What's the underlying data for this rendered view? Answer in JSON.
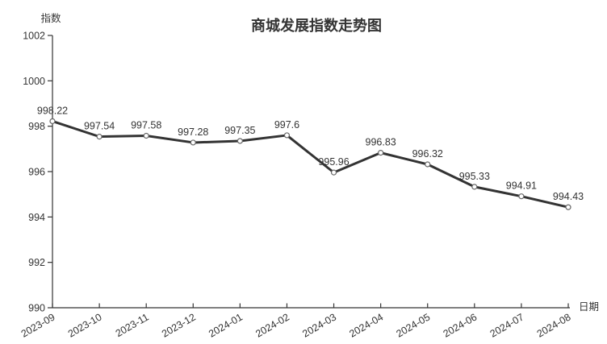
{
  "chart": {
    "title": "商城发展指数走势图",
    "y_axis_name": "指数",
    "x_axis_name": "日期"
  },
  "chart_data": {
    "type": "line",
    "title": "商城发展指数走势图",
    "xlabel": "日期",
    "ylabel": "指数",
    "categories": [
      "2023-09",
      "2023-10",
      "2023-11",
      "2023-12",
      "2024-01",
      "2024-02",
      "2024-03",
      "2024-04",
      "2024-05",
      "2024-06",
      "2024-07",
      "2024-08"
    ],
    "values": [
      998.22,
      997.54,
      997.58,
      997.28,
      997.35,
      997.6,
      995.96,
      996.83,
      996.32,
      995.33,
      994.91,
      994.43
    ],
    "ylim": [
      990,
      1002
    ],
    "y_ticks": [
      990,
      992,
      994,
      996,
      998,
      1000,
      1002
    ],
    "grid": false,
    "legend_position": "none",
    "data_labels_visible": true,
    "x_label_rotation_deg": -30,
    "colors": {
      "line": "#333333",
      "marker_fill": "#ffffff",
      "marker_stroke": "#666666",
      "axis": "#333333",
      "text": "#333333",
      "background": "#ffffff"
    }
  }
}
